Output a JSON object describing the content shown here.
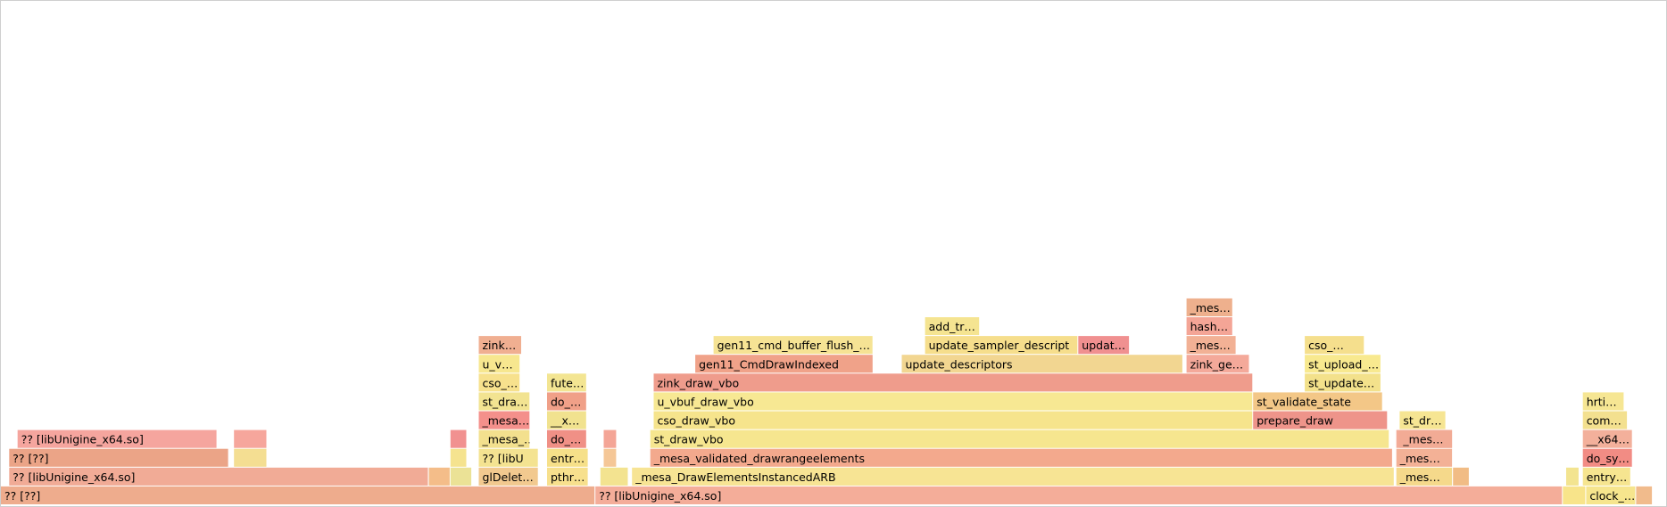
{
  "chart_data": {
    "type": "flamegraph",
    "title": "",
    "x_unit": "fraction of samples",
    "frames": [
      {
        "name": "?? [??]",
        "start": 0.0,
        "end": 0.357,
        "depth": 0,
        "color": "#eeac8d"
      },
      {
        "name": "?? [libUnigine_x64.so]",
        "start": 0.357,
        "end": 0.938,
        "depth": 0,
        "color": "#f4ad99"
      },
      {
        "name": "",
        "start": 0.938,
        "end": 0.952,
        "depth": 0,
        "color": "#f8e48a"
      },
      {
        "name": "clock_…",
        "start": 0.952,
        "end": 0.982,
        "depth": 0,
        "color": "#f6e58d"
      },
      {
        "name": "",
        "start": 0.982,
        "end": 0.992,
        "depth": 0,
        "color": "#f1bb8c"
      },
      {
        "name": "?? [libUnigine_x64.so]",
        "start": 0.005,
        "end": 0.257,
        "depth": 1,
        "color": "#f1ab96"
      },
      {
        "name": "",
        "start": 0.257,
        "end": 0.27,
        "depth": 1,
        "color": "#f4bd89"
      },
      {
        "name": "",
        "start": 0.27,
        "end": 0.283,
        "depth": 1,
        "color": "#ebe296"
      },
      {
        "name": "glDelet…",
        "start": 0.287,
        "end": 0.323,
        "depth": 1,
        "color": "#f2c98f"
      },
      {
        "name": "pthr…",
        "start": 0.328,
        "end": 0.353,
        "depth": 1,
        "color": "#f7e08d"
      },
      {
        "name": "",
        "start": 0.36,
        "end": 0.377,
        "depth": 1,
        "color": "#f3e390"
      },
      {
        "name": "_mesa_DrawElementsInstancedARB",
        "start": 0.379,
        "end": 0.837,
        "depth": 1,
        "color": "#f7e494"
      },
      {
        "name": "_mes…",
        "start": 0.838,
        "end": 0.872,
        "depth": 1,
        "color": "#f5d98b"
      },
      {
        "name": "",
        "start": 0.872,
        "end": 0.882,
        "depth": 1,
        "color": "#f1bc85"
      },
      {
        "name": "",
        "start": 0.94,
        "end": 0.948,
        "depth": 1,
        "color": "#f3e490"
      },
      {
        "name": "entry…",
        "start": 0.95,
        "end": 0.979,
        "depth": 1,
        "color": "#f6e590"
      },
      {
        "name": "?? [??]",
        "start": 0.005,
        "end": 0.137,
        "depth": 2,
        "color": "#eba487"
      },
      {
        "name": "",
        "start": 0.14,
        "end": 0.16,
        "depth": 2,
        "color": "#f4de92"
      },
      {
        "name": "",
        "start": 0.27,
        "end": 0.28,
        "depth": 2,
        "color": "#f5e38f"
      },
      {
        "name": "?? [libU",
        "start": 0.287,
        "end": 0.323,
        "depth": 2,
        "color": "#f4e391"
      },
      {
        "name": "entr…",
        "start": 0.328,
        "end": 0.353,
        "depth": 2,
        "color": "#f6e089"
      },
      {
        "name": "",
        "start": 0.362,
        "end": 0.37,
        "depth": 2,
        "color": "#f5c797"
      },
      {
        "name": "_mesa_validated_drawrangeelements",
        "start": 0.39,
        "end": 0.836,
        "depth": 2,
        "color": "#f3a98d"
      },
      {
        "name": "_mes…",
        "start": 0.838,
        "end": 0.872,
        "depth": 2,
        "color": "#f3b196"
      },
      {
        "name": "do_sy…",
        "start": 0.95,
        "end": 0.98,
        "depth": 2,
        "color": "#f28c84"
      },
      {
        "name": "?? [libUnigine_x64.so]",
        "start": 0.01,
        "end": 0.13,
        "depth": 3,
        "color": "#f5a59e"
      },
      {
        "name": "",
        "start": 0.14,
        "end": 0.16,
        "depth": 3,
        "color": "#f6a69c"
      },
      {
        "name": "",
        "start": 0.27,
        "end": 0.28,
        "depth": 3,
        "color": "#f19190"
      },
      {
        "name": "_mesa_…",
        "start": 0.287,
        "end": 0.318,
        "depth": 3,
        "color": "#f3e08e"
      },
      {
        "name": "do_…",
        "start": 0.328,
        "end": 0.352,
        "depth": 3,
        "color": "#f09086"
      },
      {
        "name": "",
        "start": 0.362,
        "end": 0.37,
        "depth": 3,
        "color": "#f4a596"
      },
      {
        "name": "st_draw_vbo",
        "start": 0.39,
        "end": 0.834,
        "depth": 3,
        "color": "#f6e68f"
      },
      {
        "name": "_mes…",
        "start": 0.838,
        "end": 0.872,
        "depth": 3,
        "color": "#f3ab97"
      },
      {
        "name": "__x64…",
        "start": 0.95,
        "end": 0.98,
        "depth": 3,
        "color": "#f3b09b"
      },
      {
        "name": "_mesa…",
        "start": 0.287,
        "end": 0.318,
        "depth": 4,
        "color": "#f4908b"
      },
      {
        "name": "__x…",
        "start": 0.328,
        "end": 0.352,
        "depth": 4,
        "color": "#f1e28f"
      },
      {
        "name": "cso_draw_vbo",
        "start": 0.392,
        "end": 0.752,
        "depth": 4,
        "color": "#f6e48c"
      },
      {
        "name": "prepare_draw",
        "start": 0.752,
        "end": 0.833,
        "depth": 4,
        "color": "#ee948a"
      },
      {
        "name": "com…",
        "start": 0.95,
        "end": 0.977,
        "depth": 4,
        "color": "#f3e08f"
      },
      {
        "name": "st_dra…",
        "start": 0.287,
        "end": 0.318,
        "depth": 5,
        "color": "#f2e391"
      },
      {
        "name": "do_…",
        "start": 0.328,
        "end": 0.352,
        "depth": 5,
        "color": "#f0a088"
      },
      {
        "name": "u_vbuf_draw_vbo",
        "start": 0.392,
        "end": 0.752,
        "depth": 5,
        "color": "#f7e893"
      },
      {
        "name": "st_validate_state",
        "start": 0.752,
        "end": 0.83,
        "depth": 5,
        "color": "#f3c787"
      },
      {
        "name": "hrti…",
        "start": 0.95,
        "end": 0.975,
        "depth": 5,
        "color": "#f6e693"
      },
      {
        "name": "cso_…",
        "start": 0.287,
        "end": 0.312,
        "depth": 6,
        "color": "#f7e18d"
      },
      {
        "name": "fute…",
        "start": 0.328,
        "end": 0.352,
        "depth": 6,
        "color": "#f3e592"
      },
      {
        "name": "zink_draw_vbo",
        "start": 0.392,
        "end": 0.752,
        "depth": 6,
        "color": "#ef9c8c"
      },
      {
        "name": "st_update…",
        "start": 0.783,
        "end": 0.829,
        "depth": 6,
        "color": "#f3e18b"
      },
      {
        "name": "u_v…",
        "start": 0.287,
        "end": 0.312,
        "depth": 7,
        "color": "#f7e78f"
      },
      {
        "name": "gen11_CmdDrawIndexed",
        "start": 0.417,
        "end": 0.524,
        "depth": 7,
        "color": "#f0a289"
      },
      {
        "name": "update_descriptors",
        "start": 0.541,
        "end": 0.71,
        "depth": 7,
        "color": "#f2d691"
      },
      {
        "name": "zink_ge…",
        "start": 0.712,
        "end": 0.75,
        "depth": 7,
        "color": "#f4a99a"
      },
      {
        "name": "st_upload_…",
        "start": 0.783,
        "end": 0.829,
        "depth": 7,
        "color": "#f8e98f"
      },
      {
        "name": "zink…",
        "start": 0.287,
        "end": 0.313,
        "depth": 8,
        "color": "#f0af91"
      },
      {
        "name": "gen11_cmd_buffer_flush_…",
        "start": 0.428,
        "end": 0.524,
        "depth": 8,
        "color": "#f6e394"
      },
      {
        "name": "update_sampler_descript",
        "start": 0.555,
        "end": 0.647,
        "depth": 8,
        "color": "#f6de8c"
      },
      {
        "name": "updat…",
        "start": 0.647,
        "end": 0.678,
        "depth": 8,
        "color": "#f09090"
      },
      {
        "name": "_mes…",
        "start": 0.712,
        "end": 0.742,
        "depth": 8,
        "color": "#f2b195"
      },
      {
        "name": "cso_…",
        "start": 0.783,
        "end": 0.819,
        "depth": 8,
        "color": "#f5df8d"
      },
      {
        "name": "add_tr…",
        "start": 0.555,
        "end": 0.588,
        "depth": 9,
        "color": "#f5e491"
      },
      {
        "name": "hash…",
        "start": 0.712,
        "end": 0.74,
        "depth": 9,
        "color": "#f4a596"
      },
      {
        "name": "_mes…",
        "start": 0.712,
        "end": 0.74,
        "depth": 10,
        "color": "#eeb08d"
      },
      {
        "name": "st_dr…",
        "start": 0.84,
        "end": 0.868,
        "depth": 4,
        "color": "#f6e593"
      },
      {
        "name": "_mes…",
        "start": 0.84,
        "end": 0.872,
        "depth": 3,
        "color": "#f2ab95"
      }
    ]
  }
}
